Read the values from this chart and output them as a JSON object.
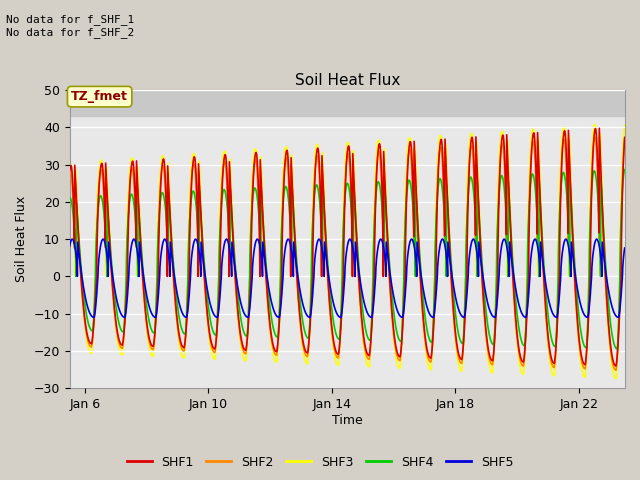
{
  "title": "Soil Heat Flux",
  "xlabel": "Time",
  "ylabel": "Soil Heat Flux",
  "ylim": [
    -30,
    50
  ],
  "yticks": [
    -30,
    -20,
    -10,
    0,
    10,
    20,
    30,
    40,
    50
  ],
  "xlim_days": [
    5.5,
    23.5
  ],
  "xtick_labels": [
    "Jan 6",
    "Jan 10",
    "Jan 14",
    "Jan 18",
    "Jan 22"
  ],
  "xtick_positions": [
    6,
    10,
    14,
    18,
    22
  ],
  "series_colors": {
    "SHF1": "#dd0000",
    "SHF2": "#ff8800",
    "SHF3": "#ffff00",
    "SHF4": "#00cc00",
    "SHF5": "#0000dd"
  },
  "legend_labels": [
    "SHF1",
    "SHF2",
    "SHF3",
    "SHF4",
    "SHF5"
  ],
  "legend_colors": [
    "#dd0000",
    "#ff8800",
    "#ffff00",
    "#00cc00",
    "#0000dd"
  ],
  "annotation_text": "No data for f_SHF_1\nNo data for f_SHF_2",
  "timezone_label": "TZ_fmet",
  "fig_facecolor": "#d4d0c8",
  "plot_facecolor": "#e8e8e8",
  "grid_color": "#ffffff",
  "top_band_color": "#c8c8c8"
}
